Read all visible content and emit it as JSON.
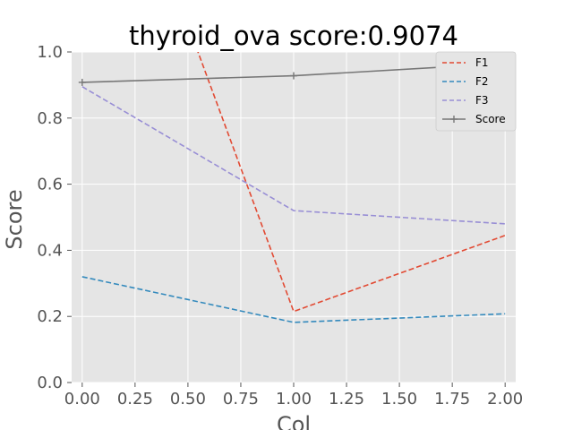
{
  "chart_data": {
    "type": "line",
    "title": "thyroid_ova score:0.9074",
    "xlabel": "Col",
    "ylabel": "Score",
    "xlim": [
      -0.05,
      2.05
    ],
    "ylim": [
      0.0,
      1.0
    ],
    "xticks": [
      0.0,
      0.25,
      0.5,
      0.75,
      1.0,
      1.25,
      1.5,
      1.75,
      2.0
    ],
    "xtick_labels": [
      "0.00",
      "0.25",
      "0.50",
      "0.75",
      "1.00",
      "1.25",
      "1.50",
      "1.75",
      "2.00"
    ],
    "yticks": [
      0.0,
      0.2,
      0.4,
      0.6,
      0.8,
      1.0
    ],
    "ytick_labels": [
      "0.0",
      "0.2",
      "0.4",
      "0.6",
      "0.8",
      "1.0"
    ],
    "grid": true,
    "legend_position": "top-right",
    "x": [
      0,
      1,
      2
    ],
    "series": [
      {
        "name": "F1",
        "values": [
          1.95,
          0.215,
          0.445
        ],
        "color": "#E24A33",
        "style": "dashed"
      },
      {
        "name": "F2",
        "values": [
          0.32,
          0.182,
          0.208
        ],
        "color": "#348ABD",
        "style": "dashed"
      },
      {
        "name": "F3",
        "values": [
          0.895,
          0.52,
          0.48
        ],
        "color": "#988ED5",
        "style": "dashed"
      },
      {
        "name": "Score",
        "values": [
          0.908,
          0.928,
          0.965
        ],
        "color": "#777777",
        "style": "solid",
        "marker": "plus"
      }
    ]
  }
}
